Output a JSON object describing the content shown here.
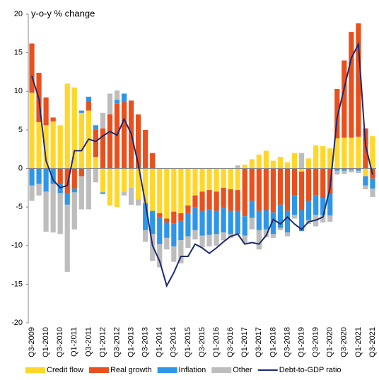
{
  "chart_data": {
    "type": "bar",
    "stacked": true,
    "y_axis_label": "y-o-y % change",
    "categories": [
      "Q3-2009",
      null,
      "Q1-2010",
      null,
      "Q3-2010",
      null,
      "Q1-2011",
      null,
      "Q3-2011",
      null,
      "Q1-2012",
      null,
      "Q3-2012",
      null,
      "Q1-2013",
      null,
      "Q3-2013",
      null,
      "Q1-2014",
      null,
      "Q3-2014",
      null,
      "Q1-2015",
      null,
      "Q3-2015",
      null,
      "Q1-2016",
      null,
      "Q3-2016",
      null,
      "Q1-2017",
      null,
      "Q3-2017",
      null,
      "Q1-2018",
      null,
      "Q3-2018",
      null,
      "Q1-2019",
      null,
      "Q3-2019",
      null,
      "Q1-2020",
      null,
      "Q3-2020",
      null,
      "Q1-2021",
      null,
      "Q3-2021"
    ],
    "series": [
      {
        "name": "Credit flow",
        "color": "#ffd72a",
        "values": [
          9.8,
          6.0,
          5.6,
          6.1,
          5.6,
          11.0,
          10.5,
          7.2,
          7.5,
          1.5,
          -3.1,
          -4.8,
          -5.0,
          -3.0,
          -2.5,
          -4.0,
          -4.5,
          -5.5,
          -5.8,
          -6.5,
          -5.6,
          -5.8,
          -4.8,
          -3.5,
          -3.0,
          -2.8,
          -3.0,
          -2.5,
          -2.7,
          -2.8,
          0.5,
          1.2,
          1.8,
          2.3,
          1.0,
          1.5,
          0.8,
          2.0,
          -0.4,
          1.3,
          3.0,
          2.9,
          2.6,
          3.9,
          4.0,
          4.0,
          4.1,
          -1.0,
          4.2
        ]
      },
      {
        "name": "Real growth",
        "color": "#e8501e",
        "values": [
          6.4,
          6.4,
          3.6,
          0.5,
          -2.0,
          -3.2,
          -2.6,
          -1.0,
          1.2,
          3.5,
          5.2,
          7.0,
          8.4,
          8.6,
          8.8,
          7.0,
          5.0,
          2.0,
          -0.5,
          -0.5,
          -1.5,
          -1.0,
          -1.0,
          -1.5,
          -2.5,
          -2.5,
          -2.5,
          -2.6,
          -2.8,
          -2.7,
          -6.2,
          -4.2,
          -5.5,
          -5.4,
          -5.7,
          -4.7,
          -5.5,
          -3.5,
          -5.0,
          -4.2,
          -3.5,
          -3.8,
          -3.3,
          6.4,
          10.0,
          13.7,
          14.7,
          5.2,
          -1.3
        ]
      },
      {
        "name": "Inflation",
        "color": "#2e96e8",
        "values": [
          -2.2,
          -2.0,
          -3.0,
          -2.0,
          -1.2,
          -1.5,
          -0.5,
          0.3,
          0.6,
          0.6,
          -0.2,
          0,
          0.5,
          1.1,
          0,
          0,
          -3.5,
          -3.0,
          -3.5,
          -2.0,
          -3.0,
          -2.5,
          -3.0,
          -3.0,
          -3.2,
          -3.3,
          -3.0,
          -3.2,
          -3.0,
          -3.0,
          -2.5,
          -2.2,
          -2.5,
          -2.5,
          -2.8,
          -3.0,
          -2.8,
          -2.5,
          -2.7,
          -2.5,
          -2.5,
          -2.2,
          -2.8,
          -0.3,
          -0.3,
          -0.2,
          -0.3,
          -1.2,
          -1.3
        ]
      },
      {
        "name": "Other",
        "color": "#bdbdbd",
        "values": [
          -2.0,
          -1.5,
          -5.2,
          -6.3,
          -5.3,
          -8.7,
          -4.8,
          -4.3,
          -5.3,
          -1.8,
          2.0,
          2.7,
          1.2,
          -0.5,
          -2.2,
          -0.8,
          -1.5,
          -3.5,
          -3.0,
          -1.5,
          -2.0,
          -3.0,
          -1.5,
          -1.2,
          -1.5,
          -1.5,
          -1.5,
          -1.0,
          -0.5,
          0.4,
          -1.0,
          -1.5,
          -2.5,
          -1.0,
          -0.5,
          -0.3,
          -0.5,
          -0.5,
          2.0,
          -0.5,
          -1.5,
          -1.0,
          -0.8,
          -0.5,
          -0.4,
          -0.3,
          -0.3,
          -0.5,
          -1.1
        ]
      },
      {
        "name": "Debt-to-GDP ratio",
        "type": "line",
        "color": "#1f2a6e",
        "values": [
          12,
          9,
          1,
          -1.5,
          -2.5,
          -2.2,
          2.3,
          2.3,
          3.8,
          3.5,
          4.2,
          4.8,
          4.3,
          6.4,
          4.5,
          0.5,
          -4.5,
          -10,
          -12,
          -15.2,
          -13.5,
          -11.4,
          -11.4,
          -9.8,
          -10.3,
          -11,
          -10.3,
          -9.5,
          -8.8,
          -8.5,
          -9.8,
          -9.6,
          -9.8,
          -8.7,
          -6.6,
          -7.2,
          -6.3,
          -7.2,
          -7.9,
          -6.9,
          -6.7,
          -6.3,
          -2.5,
          6.6,
          10.4,
          14.3,
          16.1,
          3.0,
          -0.8
        ]
      }
    ],
    "ylim": [
      -20,
      20
    ],
    "yticks": [
      -20,
      -15,
      -10,
      -5,
      0,
      5,
      10,
      15,
      20
    ],
    "grid": false,
    "legend": "bottom"
  }
}
